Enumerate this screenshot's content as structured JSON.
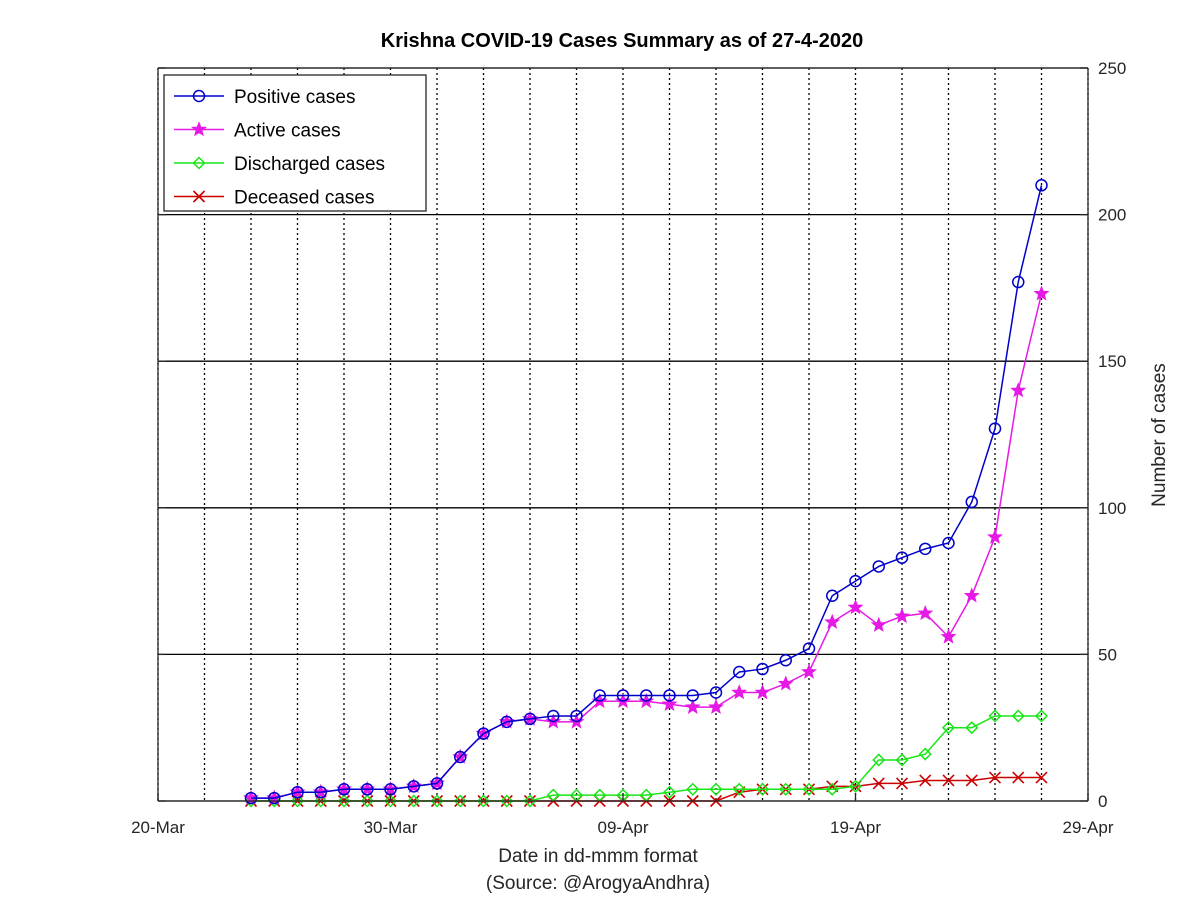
{
  "chart_data": {
    "type": "line",
    "title": "Krishna COVID-19 Cases Summary as of 27-4-2020",
    "xlabel": "Date in dd-mmm format",
    "xlabel_source": "(Source: @ArogyaAndhra)",
    "ylabel": "Number of cases",
    "x_tick_labels": [
      "20-Mar",
      "30-Mar",
      "09-Apr",
      "19-Apr",
      "29-Apr"
    ],
    "x_tick_dates": [
      "2020-03-20",
      "2020-03-30",
      "2020-04-09",
      "2020-04-19",
      "2020-04-29"
    ],
    "xlim": [
      "2020-03-20",
      "2020-04-29"
    ],
    "y_ticks": [
      0,
      50,
      100,
      150,
      200,
      250
    ],
    "ylim": [
      0,
      250
    ],
    "y_axis_side": "right",
    "grid": {
      "x": "dotted",
      "y": "solid"
    },
    "legend_position": "top-left",
    "x": [
      "2020-03-24",
      "2020-03-25",
      "2020-03-26",
      "2020-03-27",
      "2020-03-28",
      "2020-03-29",
      "2020-03-30",
      "2020-03-31",
      "2020-04-01",
      "2020-04-02",
      "2020-04-03",
      "2020-04-04",
      "2020-04-05",
      "2020-04-06",
      "2020-04-07",
      "2020-04-08",
      "2020-04-09",
      "2020-04-10",
      "2020-04-11",
      "2020-04-12",
      "2020-04-13",
      "2020-04-14",
      "2020-04-15",
      "2020-04-16",
      "2020-04-17",
      "2020-04-18",
      "2020-04-19",
      "2020-04-20",
      "2020-04-21",
      "2020-04-22",
      "2020-04-23",
      "2020-04-24",
      "2020-04-25",
      "2020-04-26",
      "2020-04-27"
    ],
    "series": [
      {
        "name": "Positive cases",
        "color": "#0000cc",
        "marker": "circle",
        "values": [
          1,
          1,
          3,
          3,
          4,
          4,
          4,
          5,
          6,
          15,
          23,
          27,
          28,
          29,
          29,
          36,
          36,
          36,
          36,
          36,
          37,
          44,
          45,
          48,
          52,
          70,
          75,
          80,
          83,
          86,
          88,
          102,
          127,
          177,
          210
        ]
      },
      {
        "name": "Active cases",
        "color": "#e619e6",
        "marker": "star",
        "values": [
          1,
          1,
          3,
          3,
          4,
          4,
          4,
          5,
          6,
          15,
          23,
          27,
          28,
          27,
          27,
          34,
          34,
          34,
          33,
          32,
          32,
          37,
          37,
          40,
          44,
          61,
          66,
          60,
          63,
          64,
          56,
          70,
          90,
          140,
          173
        ]
      },
      {
        "name": "Discharged cases",
        "color": "#19e619",
        "marker": "diamond",
        "values": [
          0,
          0,
          0,
          0,
          0,
          0,
          0,
          0,
          0,
          0,
          0,
          0,
          0,
          2,
          2,
          2,
          2,
          2,
          3,
          4,
          4,
          4,
          4,
          4,
          4,
          4,
          5,
          14,
          14,
          16,
          25,
          25,
          29,
          29,
          29
        ]
      },
      {
        "name": "Deceased cases",
        "color": "#cc0000",
        "marker": "x",
        "values": [
          0,
          0,
          0,
          0,
          0,
          0,
          0,
          0,
          0,
          0,
          0,
          0,
          0,
          0,
          0,
          0,
          0,
          0,
          0,
          0,
          0,
          3,
          4,
          4,
          4,
          5,
          5,
          6,
          6,
          7,
          7,
          7,
          8,
          8,
          8
        ]
      }
    ]
  }
}
